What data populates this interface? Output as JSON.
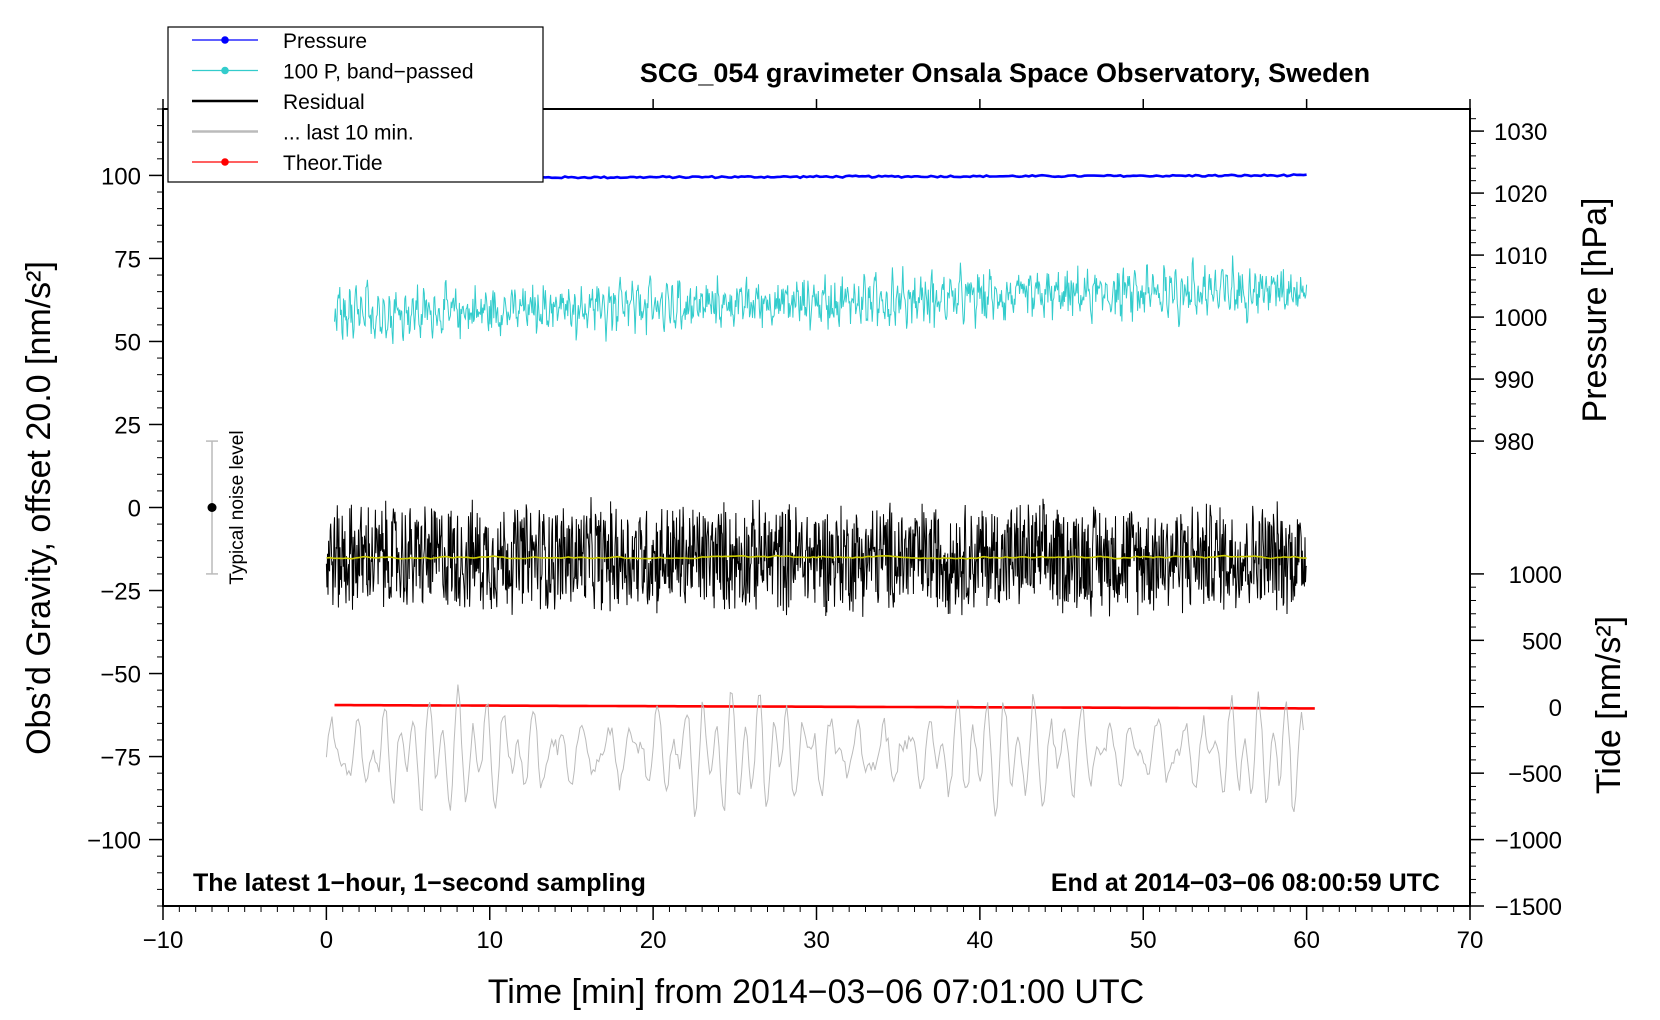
{
  "chart_data": {
    "type": "line",
    "title": "SCG_054 gravimeter Onsala Space Observatory, Sweden",
    "xlabel": "Time [min] from 2014−03−06 07:01:00 UTC",
    "ylabel_left": "Obs’d Gravity, offset 20.0 [nm/s²]",
    "ylabel_right_pressure": "Pressure [hPa]",
    "ylabel_right_tide": "Tide [nm/s²]",
    "xlim": [
      -10,
      70
    ],
    "ylim": [
      -120,
      120
    ],
    "x_ticks": [
      -10,
      0,
      10,
      20,
      30,
      40,
      50,
      60,
      70
    ],
    "x_tick_labels": [
      "−10",
      "0",
      "10",
      "20",
      "30",
      "40",
      "50",
      "60",
      "70"
    ],
    "y_ticks": [
      -100,
      -75,
      -50,
      -25,
      0,
      25,
      50,
      75,
      100
    ],
    "y_tick_labels": [
      "−100",
      "−75",
      "−50",
      "−25",
      "0",
      "25",
      "50",
      "75",
      "100"
    ],
    "pressure_axis": {
      "ticks": [
        980,
        990,
        1000,
        1010,
        1020,
        1030
      ],
      "tick_labels": [
        "980",
        "990",
        "1000",
        "1010",
        "1020",
        "1030"
      ],
      "left_at_980": 20,
      "left_per_hPa": 1.867
    },
    "tide_axis": {
      "ticks": [
        -1500,
        -1000,
        -500,
        0,
        500,
        1000
      ],
      "tick_labels": [
        "−1500",
        "−1000",
        "−500",
        "0",
        "500",
        "1000"
      ],
      "left_at_0": -60,
      "left_per_unit": 0.04
    },
    "legend": {
      "position": "top-left",
      "entries": [
        {
          "label": "Pressure",
          "color": "#0000ff",
          "marker": true
        },
        {
          "label": "100 P, band−passed",
          "color": "#33cccc",
          "marker": true
        },
        {
          "label": "Residual",
          "color": "#000000",
          "marker": false
        },
        {
          "label": "... last 10 min.",
          "color": "#bbbbbb",
          "marker": false
        },
        {
          "label": "Theor.Tide",
          "color": "#ff0000",
          "marker": true
        }
      ]
    },
    "noise_bar": {
      "label": "Typical noise level",
      "x": -7,
      "center": 0,
      "low": -20,
      "high": 20
    },
    "annotations": {
      "bottom_left": "The latest 1−hour, 1−second sampling",
      "bottom_right": "End at 2014−03−06 08:00:59 UTC"
    },
    "series": [
      {
        "name": "Pressure",
        "color": "#0000ff",
        "x_start": 0,
        "x_end": 60,
        "base_start": 99.2,
        "base_end": 100.0,
        "noise": 0.3,
        "period": 0,
        "amp": 0
      },
      {
        "name": "100 P, band-passed",
        "color": "#33cccc",
        "x_start": 0.5,
        "x_end": 60,
        "base_start": 58,
        "base_end": 66,
        "noise": 6,
        "period": 0.35,
        "amp": 4
      },
      {
        "name": "Residual",
        "color": "#000000",
        "x_start": 0,
        "x_end": 60,
        "base_start": -15,
        "base_end": -15,
        "noise": 17,
        "period": 0,
        "amp": 0
      },
      {
        "name": "Residual smoothed",
        "color": "#cccc00",
        "x_start": 0,
        "x_end": 60,
        "base_start": -15,
        "base_end": -15,
        "noise": 0.6,
        "period": 0,
        "amp": 0
      },
      {
        "name": "Theor.Tide",
        "color": "#ff0000",
        "x_start": 0.5,
        "x_end": 60.5,
        "base_start": -59.5,
        "base_end": -60.5,
        "noise": 0,
        "period": 0,
        "amp": 0
      },
      {
        "name": "... last 10 min.",
        "color": "#bbbbbb",
        "x_start": 0,
        "x_end": 59.8,
        "base_start": -74,
        "base_end": -74,
        "noise": 3,
        "period": 0.9,
        "amp": 13
      }
    ]
  }
}
